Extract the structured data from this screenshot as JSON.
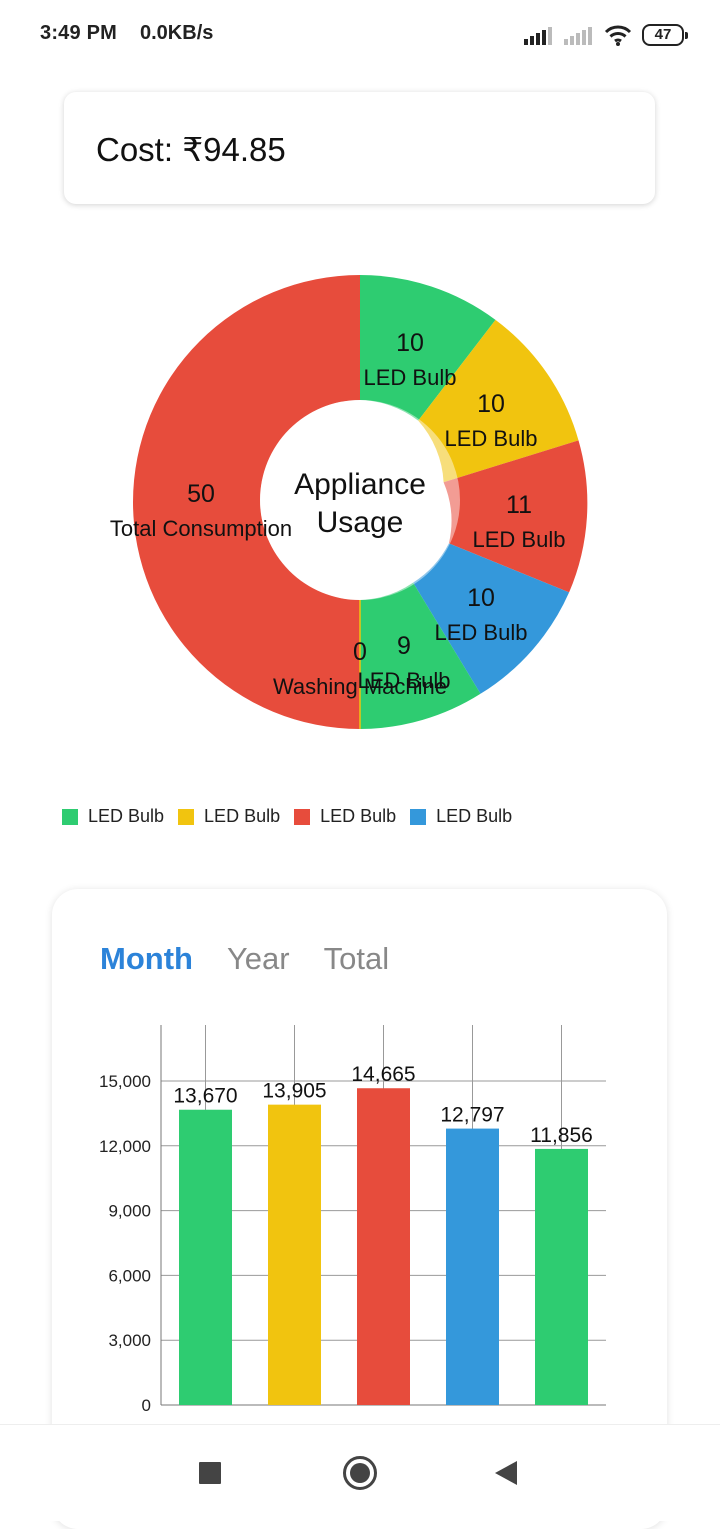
{
  "status_bar": {
    "time": "3:49 PM",
    "network_speed": "0.0KB/s",
    "battery": "47",
    "icons": [
      "signal-icon",
      "signal-icon",
      "wifi-icon",
      "battery-icon"
    ]
  },
  "cost_card": {
    "text": "Cost: ₹94.85"
  },
  "donut": {
    "center_line1": "Appliance",
    "center_line2": "Usage",
    "colors": {
      "green": "#2ecc71",
      "yellow": "#f1c40f",
      "red": "#e74c3c",
      "blue": "#3498db"
    },
    "slices": [
      {
        "value": "10",
        "label": "LED Bulb"
      },
      {
        "value": "10",
        "label": "LED Bulb"
      },
      {
        "value": "11",
        "label": "LED Bulb"
      },
      {
        "value": "10",
        "label": "LED Bulb"
      },
      {
        "value": "9",
        "label": "LED Bulb"
      },
      {
        "value": "0",
        "label": "Washing Machine"
      },
      {
        "value": "50",
        "label": "Total Consumption"
      }
    ]
  },
  "legend": [
    {
      "label": "LED Bulb",
      "color": "#2ecc71"
    },
    {
      "label": "LED Bulb",
      "color": "#f1c40f"
    },
    {
      "label": "LED Bulb",
      "color": "#e74c3c"
    },
    {
      "label": "LED Bulb",
      "color": "#3498db"
    }
  ],
  "tabs": [
    {
      "label": "Month",
      "active": true
    },
    {
      "label": "Year",
      "active": false
    },
    {
      "label": "Total",
      "active": false
    }
  ],
  "chart_data": {
    "type": "bar",
    "categories": [
      "",
      "",
      "",
      "",
      ""
    ],
    "values": [
      13670,
      13905,
      14665,
      12797,
      11856
    ],
    "value_labels": [
      "13,670",
      "13,905",
      "14,665",
      "12,797",
      "11,856"
    ],
    "colors": [
      "#2ecc71",
      "#f1c40f",
      "#e74c3c",
      "#3498db",
      "#2ecc71"
    ],
    "ylim": [
      0,
      15000
    ],
    "y_ticks": [
      "0",
      "3,000",
      "6,000",
      "9,000",
      "12,000",
      "15,000"
    ],
    "grid": true
  },
  "nav_bar": {
    "icons": [
      "recents-square-icon",
      "home-circle-icon",
      "back-triangle-icon"
    ]
  }
}
